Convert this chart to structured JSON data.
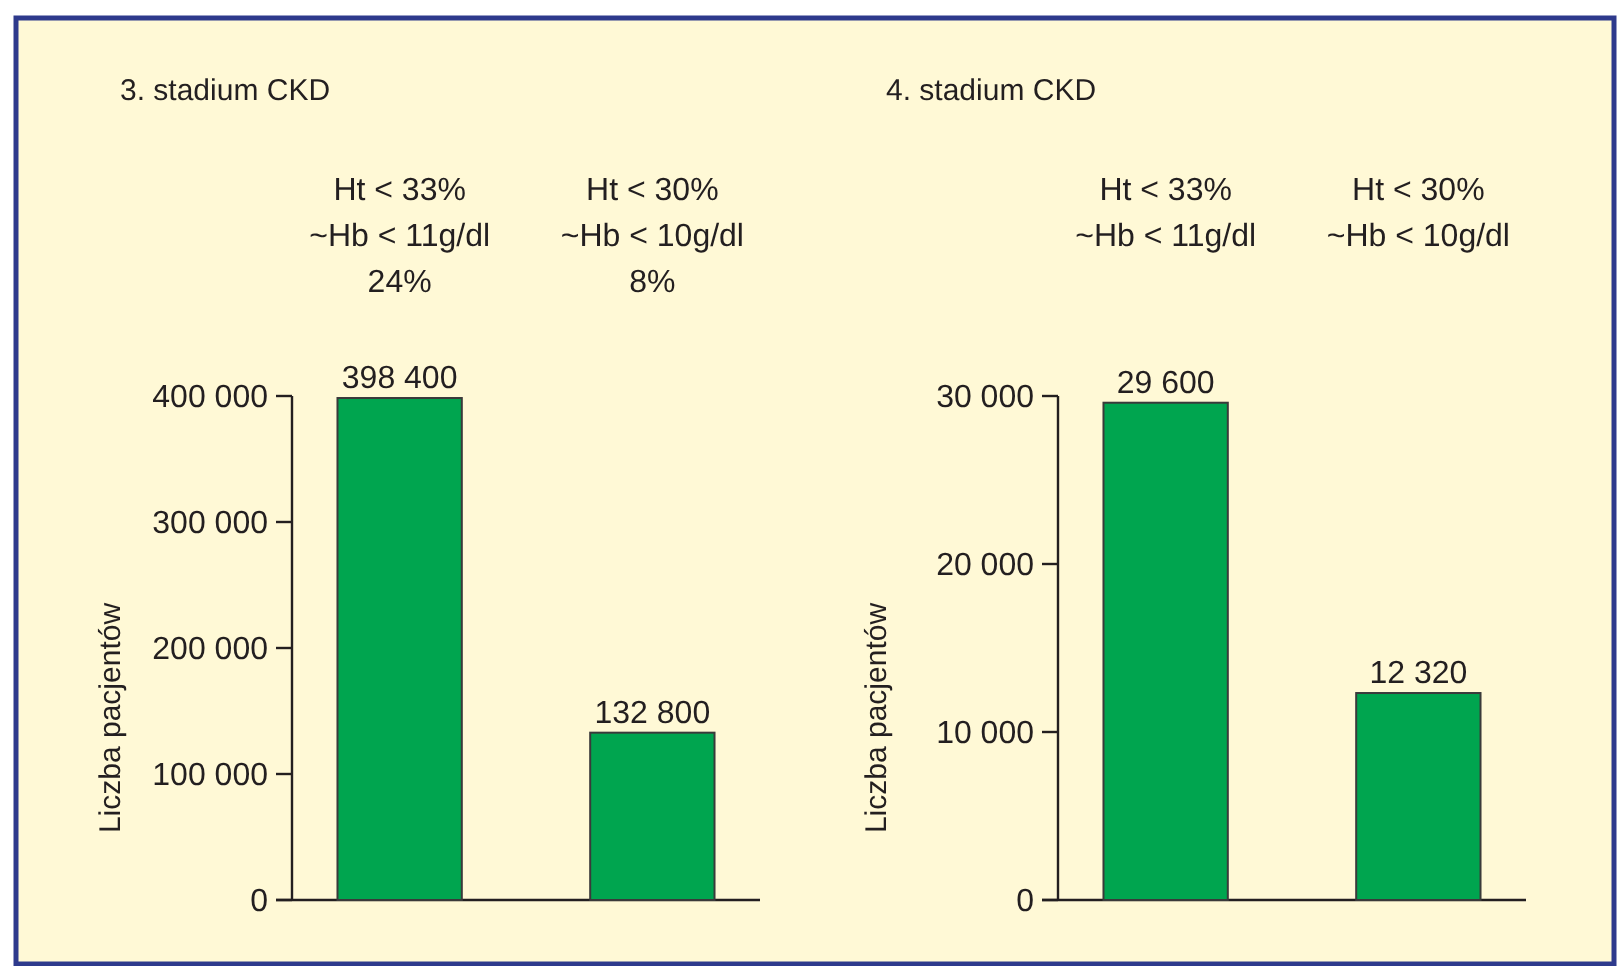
{
  "chart_data": [
    {
      "type": "bar",
      "title": "3. stadium CKD",
      "ylabel": "Liczba pacjentów",
      "categories": [
        "Ht < 33%\n~Hb < 11g/dl\n24%",
        "Ht < 30%\n~Hb < 10g/dl\n8%"
      ],
      "values": [
        398400,
        132800
      ],
      "color": "#00a54f",
      "value_labels": [
        "398 400",
        "132 800"
      ],
      "ylim": [
        0,
        400000
      ],
      "yticks": [
        {
          "value": 0,
          "label": "0"
        },
        {
          "value": 100000,
          "label": "100 000"
        },
        {
          "value": 200000,
          "label": "200 000"
        },
        {
          "value": 300000,
          "label": "300 000"
        },
        {
          "value": 400000,
          "label": "400 000"
        }
      ]
    },
    {
      "type": "bar",
      "title": "4. stadium CKD",
      "ylabel": "Liczba pacjentów",
      "categories": [
        "Ht < 33%\n~Hb < 11g/dl",
        "Ht < 30%\n~Hb < 10g/dl"
      ],
      "values": [
        29600,
        12320
      ],
      "color": "#00a54f",
      "value_labels": [
        "29 600",
        "12 320"
      ],
      "ylim": [
        0,
        30000
      ],
      "yticks": [
        {
          "value": 0,
          "label": "0"
        },
        {
          "value": 10000,
          "label": "10 000"
        },
        {
          "value": 20000,
          "label": "20 000"
        },
        {
          "value": 30000,
          "label": "30 000"
        }
      ]
    }
  ]
}
